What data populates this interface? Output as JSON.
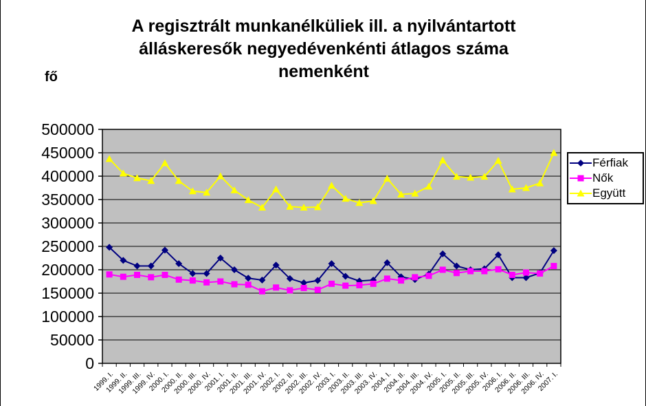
{
  "title_lines": [
    "A regisztrált munkanélküliek ill. a nyilvántartott",
    "álláskeresők negyedévenkénti átlagos száma",
    "nemenként"
  ],
  "y_axis_unit": "fő",
  "colors": {
    "plot_background": "#c0c0c0",
    "gridline": "#000000",
    "axis": "#000000",
    "series_ferfiak": "#000080",
    "series_nok": "#ff00ff",
    "series_egyutt": "#ffff00"
  },
  "chart_data": {
    "type": "line",
    "title": "A regisztrált munkanélküliek ill. a nyilvántartott álláskeresők negyedévenkénti átlagos száma nemenként",
    "xlabel": "",
    "ylabel": "fő",
    "ylim": [
      0,
      500000
    ],
    "ytick_step": 50000,
    "grid": true,
    "legend_position": "right",
    "plot_bg": "#c0c0c0",
    "categories": [
      "1999. I.",
      "1999. II.",
      "1999. III.",
      "1999. IV.",
      "2000. I.",
      "2000. II.",
      "2000. III.",
      "2000. IV.",
      "2001. I.",
      "2001. II.",
      "2001. III.",
      "2001. IV.",
      "2002. I.",
      "2002. II.",
      "2002. III.",
      "2002. IV.",
      "2003. I.",
      "2003. II.",
      "2003. III.",
      "2003. IV.",
      "2004. I.",
      "2004. II.",
      "2004. III.",
      "2004. IV.",
      "2005. I.",
      "2005. II.",
      "2005. III.",
      "2005. IV.",
      "2006. I.",
      "2006. II.",
      "2006. III.",
      "2006. IV.",
      "2007. I."
    ],
    "series": [
      {
        "name": "Férfiak",
        "color": "#000080",
        "marker": "diamond",
        "values": [
          248000,
          220000,
          208000,
          208000,
          242000,
          213000,
          192000,
          192000,
          225000,
          200000,
          182000,
          178000,
          210000,
          181000,
          172000,
          177000,
          213000,
          186000,
          176000,
          178000,
          215000,
          185000,
          179000,
          191000,
          234000,
          208000,
          200000,
          202000,
          232000,
          183000,
          183000,
          193000,
          241000
        ]
      },
      {
        "name": "Nők",
        "color": "#ff00ff",
        "marker": "square",
        "values": [
          190000,
          185000,
          189000,
          184000,
          189000,
          179000,
          177000,
          173000,
          175000,
          169000,
          168000,
          154000,
          162000,
          156000,
          161000,
          157000,
          170000,
          166000,
          167000,
          170000,
          181000,
          177000,
          184000,
          187000,
          200000,
          193000,
          197000,
          197000,
          201000,
          189000,
          194000,
          192000,
          208000
        ]
      },
      {
        "name": "Együtt",
        "color": "#ffff00",
        "marker": "triangle",
        "values": [
          437000,
          406000,
          396000,
          390000,
          428000,
          390000,
          368000,
          365000,
          400000,
          370000,
          349000,
          333000,
          372000,
          335000,
          333000,
          334000,
          380000,
          352000,
          343000,
          347000,
          395000,
          361000,
          363000,
          378000,
          434000,
          399000,
          397000,
          399000,
          433000,
          372000,
          375000,
          385000,
          450000
        ]
      }
    ]
  }
}
